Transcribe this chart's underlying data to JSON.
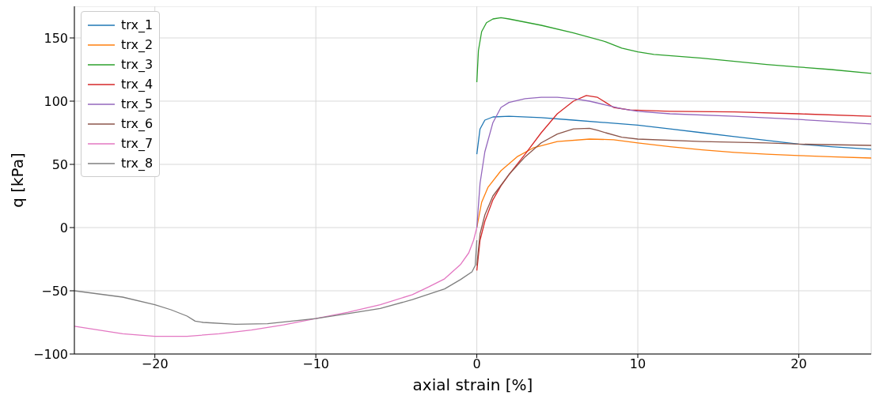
{
  "chart_data": {
    "type": "line",
    "xlabel": "axial strain [%]",
    "ylabel": "q [kPa]",
    "xlim": [
      -25,
      24.5
    ],
    "xticks": [
      -20,
      -10,
      0,
      10,
      20
    ],
    "ylim": [
      -100,
      175
    ],
    "yticks": [
      -100,
      -50,
      0,
      50,
      100,
      150
    ],
    "grid": true,
    "legend": "top left",
    "marker": "none",
    "line_style": "solid",
    "series": [
      {
        "name": "trx_1",
        "color": "#1f77b4",
        "x": [
          0,
          0.2,
          0.5,
          1,
          2,
          4,
          6,
          8,
          10,
          12,
          14,
          16,
          18,
          20,
          22,
          24.5
        ],
        "values": [
          58,
          78,
          85,
          87.5,
          88,
          87,
          85,
          83,
          81,
          78,
          75,
          72,
          69,
          66,
          64,
          62
        ]
      },
      {
        "name": "trx_2",
        "color": "#ff7f0e",
        "x": [
          0,
          0.3,
          0.7,
          1.5,
          2.5,
          3.5,
          5,
          7,
          8.5,
          10,
          12,
          14,
          16,
          18,
          20,
          22,
          24.5
        ],
        "values": [
          0,
          20,
          32,
          45,
          56,
          63,
          68,
          70,
          69.5,
          67,
          64,
          61.5,
          59.5,
          58,
          57,
          56,
          55
        ]
      },
      {
        "name": "trx_3",
        "color": "#2ca02c",
        "x": [
          0,
          0.1,
          0.3,
          0.6,
          1,
          1.5,
          2,
          4,
          6,
          8,
          9,
          10,
          11,
          14,
          18,
          20,
          22,
          24.5
        ],
        "values": [
          115,
          140,
          155,
          162,
          165,
          166,
          165,
          160,
          154,
          147,
          142,
          139,
          137,
          134,
          129,
          127,
          125,
          122
        ]
      },
      {
        "name": "trx_4",
        "color": "#d62728",
        "x": [
          0,
          0.2,
          0.5,
          1,
          1.5,
          2,
          3,
          4,
          5,
          6,
          6.8,
          7.5,
          8,
          8.5,
          9.5,
          12,
          16,
          20,
          24.5
        ],
        "values": [
          -34,
          -10,
          5,
          22,
          33,
          42,
          58,
          75,
          90,
          100,
          104.5,
          103,
          99,
          95,
          93,
          92,
          91.5,
          90,
          88
        ]
      },
      {
        "name": "trx_5",
        "color": "#9467bd",
        "x": [
          0,
          0.2,
          0.5,
          1,
          1.5,
          2,
          3,
          4,
          5,
          6,
          7,
          8,
          9,
          10,
          12,
          16,
          20,
          22,
          24.5
        ],
        "values": [
          0,
          35,
          60,
          83,
          95,
          99,
          102,
          103,
          103,
          102,
          100,
          97,
          94,
          92,
          90,
          88,
          85.5,
          84,
          82
        ]
      },
      {
        "name": "trx_6",
        "color": "#8c564b",
        "x": [
          0,
          0.2,
          0.5,
          1,
          2,
          3,
          4,
          5,
          6,
          7,
          7.5,
          8,
          9,
          10,
          14,
          18,
          20,
          24.5
        ],
        "values": [
          -30,
          -5,
          10,
          25,
          42,
          56,
          67,
          74,
          78,
          78.5,
          77,
          75,
          71.5,
          70,
          68,
          67,
          66,
          65
        ]
      },
      {
        "name": "trx_7",
        "color": "#e377c2",
        "x": [
          -25,
          -22,
          -20,
          -18,
          -16,
          -14,
          -12,
          -10,
          -8,
          -6,
          -4,
          -3,
          -2,
          -1,
          -0.5,
          -0.2,
          0
        ],
        "values": [
          -78,
          -84,
          -86,
          -86,
          -84,
          -81,
          -77,
          -72,
          -67,
          -61,
          -53,
          -47,
          -40.5,
          -29,
          -20,
          -10,
          0
        ]
      },
      {
        "name": "trx_8",
        "color": "#7f7f7f",
        "x": [
          -25,
          -22,
          -20,
          -19,
          -18,
          -17.5,
          -17,
          -15,
          -13,
          -10,
          -8,
          -6,
          -4,
          -2,
          -1,
          -0.3,
          -0.1,
          0
        ],
        "values": [
          -50,
          -55,
          -61,
          -65,
          -70,
          -74,
          -75,
          -76.5,
          -76,
          -72,
          -68,
          -64,
          -57,
          -48.5,
          -41,
          -35,
          -30,
          -10
        ]
      }
    ]
  }
}
